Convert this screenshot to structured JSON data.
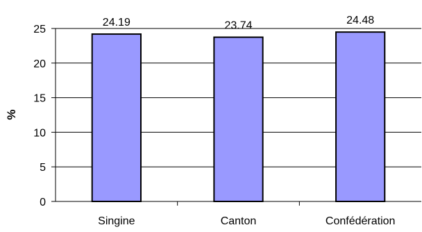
{
  "chart_data": {
    "type": "bar",
    "categories": [
      "Singine",
      "Canton",
      "Confédération"
    ],
    "values": [
      24.19,
      23.74,
      24.48
    ],
    "value_labels": [
      "24.19",
      "23.74",
      "24.48"
    ],
    "ylabel": "%",
    "ylim": [
      0,
      25
    ],
    "yticks": [
      0,
      5,
      10,
      15,
      20,
      25
    ],
    "grid": true,
    "legend": "none",
    "bar_color": "#9999ff",
    "bar_edge_color": "#000000"
  }
}
